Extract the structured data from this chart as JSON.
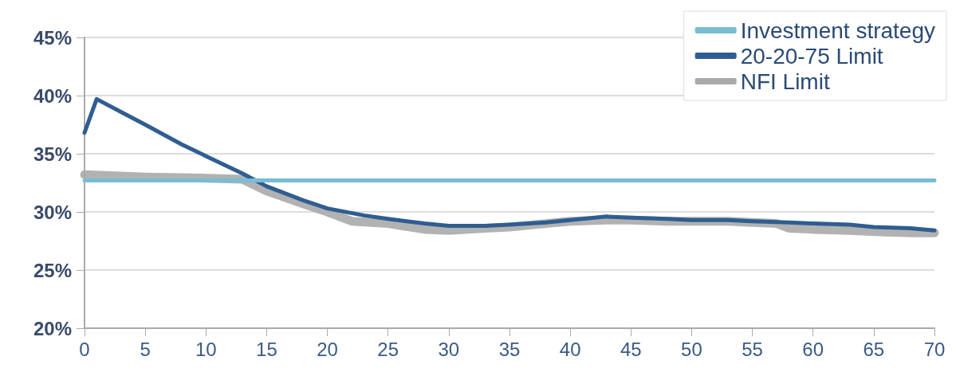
{
  "chart_data": {
    "type": "line",
    "xlim": [
      0,
      70
    ],
    "xticks": [
      0,
      5,
      10,
      15,
      20,
      25,
      30,
      35,
      40,
      45,
      50,
      55,
      60,
      65,
      70
    ],
    "ylim": [
      20,
      45
    ],
    "yticks": [
      {
        "value": 20,
        "label": "20%"
      },
      {
        "value": 25,
        "label": "25%"
      },
      {
        "value": 30,
        "label": "30%"
      },
      {
        "value": 35,
        "label": "35%"
      },
      {
        "value": 40,
        "label": "40%"
      },
      {
        "value": 45,
        "label": "45%"
      }
    ],
    "grid": "y",
    "legend": "top right",
    "marker": "none",
    "line_style": "solid",
    "series": [
      {
        "name": "Investment strategy",
        "color": "#77bed3",
        "x": [
          0,
          70
        ],
        "values": [
          32.7,
          32.7
        ]
      },
      {
        "name": "20-20-75 Limit",
        "color": "#2f5d91",
        "x": [
          0,
          1,
          3,
          5,
          8,
          10,
          13,
          15,
          18,
          20,
          23,
          25,
          28,
          30,
          33,
          35,
          38,
          40,
          43,
          45,
          48,
          50,
          53,
          55,
          58,
          60,
          63,
          65,
          68,
          70
        ],
        "values": [
          36.8,
          39.7,
          38.6,
          37.5,
          35.8,
          34.8,
          33.3,
          32.2,
          31.0,
          30.3,
          29.7,
          29.4,
          29.0,
          28.8,
          28.8,
          28.9,
          29.1,
          29.3,
          29.6,
          29.5,
          29.4,
          29.3,
          29.3,
          29.2,
          29.1,
          29.0,
          28.9,
          28.7,
          28.6,
          28.4
        ]
      },
      {
        "name": "NFI Limit",
        "color": "#aaaaaa",
        "x": [
          0,
          5,
          10,
          13,
          15,
          18,
          20,
          22,
          25,
          28,
          30,
          33,
          35,
          38,
          40,
          43,
          45,
          48,
          50,
          53,
          55,
          57,
          58,
          60,
          63,
          65,
          68,
          70
        ],
        "values": [
          33.2,
          33.0,
          32.9,
          32.8,
          31.8,
          30.7,
          30.0,
          29.2,
          29.0,
          28.5,
          28.4,
          28.6,
          28.7,
          29.0,
          29.2,
          29.3,
          29.3,
          29.2,
          29.2,
          29.2,
          29.1,
          29.0,
          28.6,
          28.5,
          28.4,
          28.3,
          28.2,
          28.2
        ]
      }
    ]
  }
}
